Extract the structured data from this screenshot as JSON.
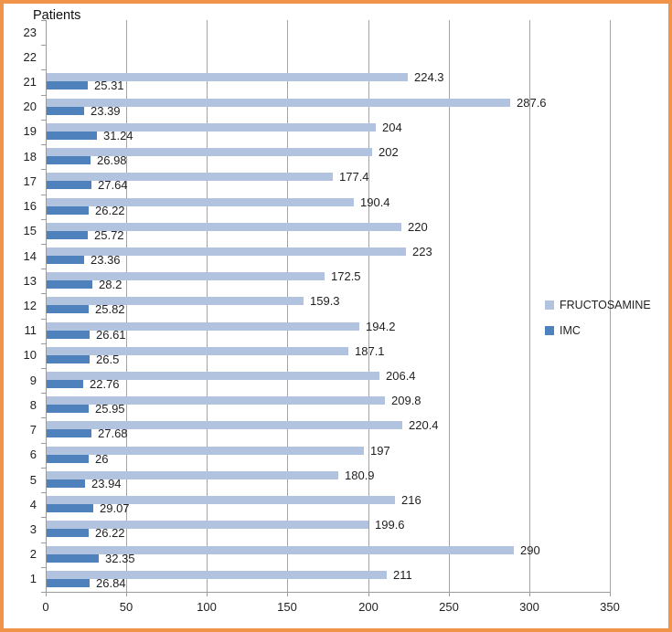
{
  "frame": {
    "border_color": "#F0944A",
    "background": "#FFFFFF"
  },
  "chart_data": {
    "type": "bar",
    "orientation": "horizontal",
    "title": "Patients",
    "axis": {
      "xlim": [
        0,
        350
      ],
      "x_tick_step": 50,
      "x_tick_labels": [
        "0",
        "50",
        "100",
        "150",
        "200",
        "250",
        "300",
        "350"
      ],
      "grid": "vertical",
      "legend_position": "right",
      "data_labels": "outside-end"
    },
    "colors": {
      "fructosamine": "#B1C3DE",
      "imc": "#4F81BD",
      "gridline": "#A3A3A3",
      "axis_line": "#9B9B9B",
      "text": "#1F1F1F"
    },
    "series": [
      {
        "name": "FRUCTOSAMINE",
        "color": "#B1C3DE"
      },
      {
        "name": "IMC",
        "color": "#4F81BD"
      }
    ],
    "rows": [
      {
        "patient": "23",
        "fructosamine": null,
        "imc": null
      },
      {
        "patient": "22",
        "fructosamine": null,
        "imc": null
      },
      {
        "patient": "21",
        "fructosamine": 224.3,
        "imc": 25.31
      },
      {
        "patient": "20",
        "fructosamine": 287.6,
        "imc": 23.39
      },
      {
        "patient": "19",
        "fructosamine": 204,
        "imc": 31.24
      },
      {
        "patient": "18",
        "fructosamine": 202,
        "imc": 26.98
      },
      {
        "patient": "17",
        "fructosamine": 177.4,
        "imc": 27.64
      },
      {
        "patient": "16",
        "fructosamine": 190.4,
        "imc": 26.22
      },
      {
        "patient": "15",
        "fructosamine": 220,
        "imc": 25.72
      },
      {
        "patient": "14",
        "fructosamine": 223,
        "imc": 23.36
      },
      {
        "patient": "13",
        "fructosamine": 172.5,
        "imc": 28.2
      },
      {
        "patient": "12",
        "fructosamine": 159.3,
        "imc": 25.82
      },
      {
        "patient": "11",
        "fructosamine": 194.2,
        "imc": 26.61
      },
      {
        "patient": "10",
        "fructosamine": 187.1,
        "imc": 26.5
      },
      {
        "patient": "9",
        "fructosamine": 206.4,
        "imc": 22.76
      },
      {
        "patient": "8",
        "fructosamine": 209.8,
        "imc": 25.95
      },
      {
        "patient": "7",
        "fructosamine": 220.4,
        "imc": 27.68
      },
      {
        "patient": "6",
        "fructosamine": 197,
        "imc": 26
      },
      {
        "patient": "5",
        "fructosamine": 180.9,
        "imc": 23.94
      },
      {
        "patient": "4",
        "fructosamine": 216,
        "imc": 29.07
      },
      {
        "patient": "3",
        "fructosamine": 199.6,
        "imc": 26.22
      },
      {
        "patient": "2",
        "fructosamine": 290,
        "imc": 32.35
      },
      {
        "patient": "1",
        "fructosamine": 211,
        "imc": 26.84
      }
    ]
  }
}
